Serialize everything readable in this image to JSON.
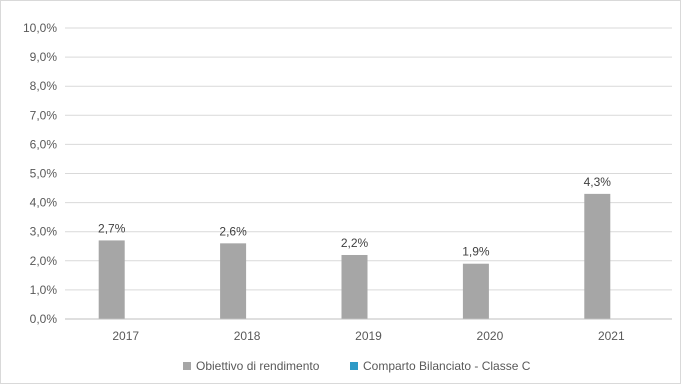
{
  "chart_data": {
    "type": "bar",
    "categories": [
      "2017",
      "2018",
      "2019",
      "2020",
      "2021"
    ],
    "series": [
      {
        "name": "Obiettivo di rendimento",
        "values": [
          2.7,
          2.6,
          2.2,
          1.9,
          4.3
        ],
        "labels": [
          "2,7%",
          "2,6%",
          "2,2%",
          "1,9%",
          "4,3%"
        ],
        "color": "#a6a6a6"
      },
      {
        "name": "Comparto Bilanciato - Classe C",
        "values": [
          null,
          null,
          null,
          null,
          null
        ],
        "color": "#2e9ac6"
      }
    ],
    "ylim": [
      0,
      10
    ],
    "yticks": [
      {
        "value": 0,
        "label": "0,0%"
      },
      {
        "value": 1,
        "label": "1,0%"
      },
      {
        "value": 2,
        "label": "2,0%"
      },
      {
        "value": 3,
        "label": "3,0%"
      },
      {
        "value": 4,
        "label": "4,0%"
      },
      {
        "value": 5,
        "label": "5,0%"
      },
      {
        "value": 6,
        "label": "6,0%"
      },
      {
        "value": 7,
        "label": "7,0%"
      },
      {
        "value": 8,
        "label": "8,0%"
      },
      {
        "value": 9,
        "label": "9,0%"
      },
      {
        "value": 10,
        "label": "10,0%"
      }
    ],
    "grid": true,
    "legend_position": "bottom",
    "gridline_color": "#d9d9d9",
    "axis_line_color": "#bfbfbf"
  }
}
